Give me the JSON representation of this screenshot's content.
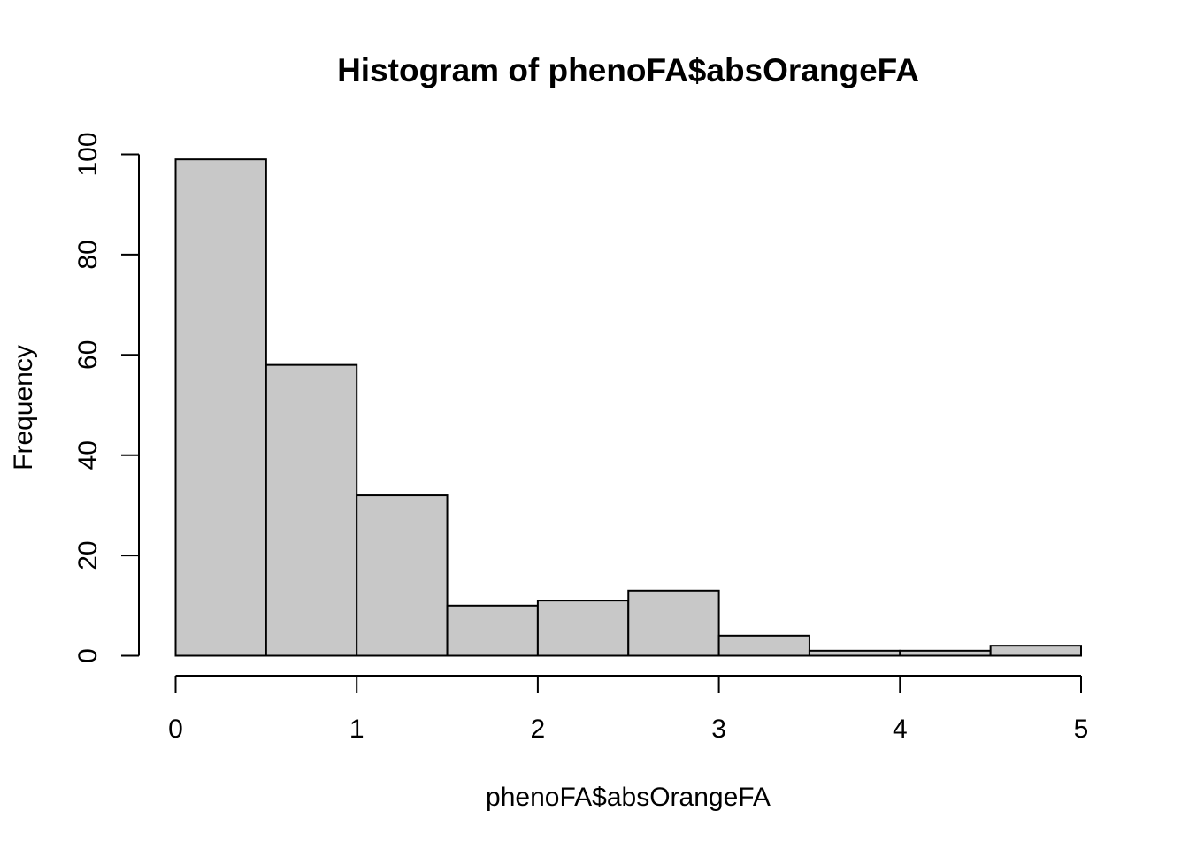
{
  "chart_data": {
    "type": "bar",
    "title": "Histogram of phenoFA$absOrangeFA",
    "xlabel": "phenoFA$absOrangeFA",
    "ylabel": "Frequency",
    "bins": [
      {
        "start": 0.0,
        "end": 0.5,
        "count": 99
      },
      {
        "start": 0.5,
        "end": 1.0,
        "count": 58
      },
      {
        "start": 1.0,
        "end": 1.5,
        "count": 32
      },
      {
        "start": 1.5,
        "end": 2.0,
        "count": 10
      },
      {
        "start": 2.0,
        "end": 2.5,
        "count": 11
      },
      {
        "start": 2.5,
        "end": 3.0,
        "count": 13
      },
      {
        "start": 3.0,
        "end": 3.5,
        "count": 4
      },
      {
        "start": 3.5,
        "end": 4.0,
        "count": 1
      },
      {
        "start": 4.0,
        "end": 4.5,
        "count": 1
      },
      {
        "start": 4.5,
        "end": 5.0,
        "count": 2
      }
    ],
    "xlim": [
      0,
      5
    ],
    "ylim": [
      0,
      100
    ],
    "x_ticks": [
      "0",
      "1",
      "2",
      "3",
      "4",
      "5"
    ],
    "y_ticks": [
      "0",
      "20",
      "40",
      "60",
      "80",
      "100"
    ],
    "grid": false,
    "colors": {
      "bar_fill": "#c8c8c8",
      "bar_stroke": "#000000"
    }
  }
}
